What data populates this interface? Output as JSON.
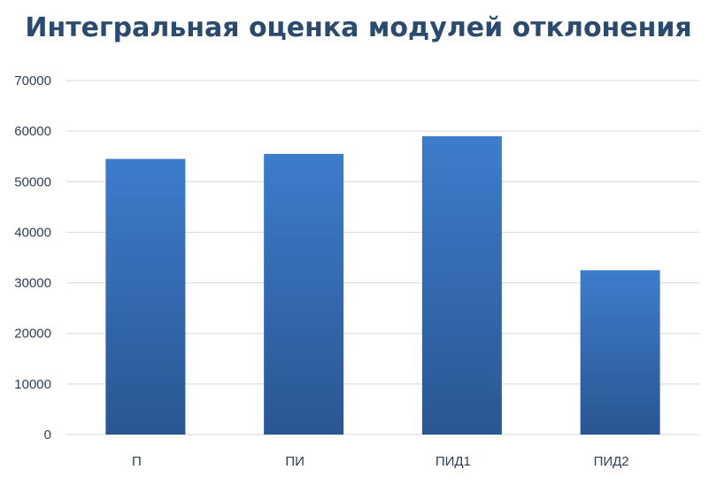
{
  "chart_data": {
    "type": "bar",
    "title": "Интегральная оценка модулей отклонения",
    "categories": [
      "П",
      "ПИ",
      "ПИД1",
      "ПИД2"
    ],
    "series": [
      {
        "values": [
          54500,
          55500,
          59000,
          32500
        ]
      }
    ],
    "ylim": [
      0,
      70000
    ],
    "yticks": [
      "0",
      "10000",
      "20000",
      "30000",
      "40000",
      "50000",
      "60000",
      "70000"
    ],
    "ytick_values": [
      0,
      10000,
      20000,
      30000,
      40000,
      50000,
      60000,
      70000
    ],
    "grid": true,
    "legend": "none",
    "colors": {
      "bar_top": "#3d7ccb",
      "bar_bottom": "#2a5692",
      "title": "#2b4a6f",
      "gridline": "#d9d9d9"
    }
  }
}
